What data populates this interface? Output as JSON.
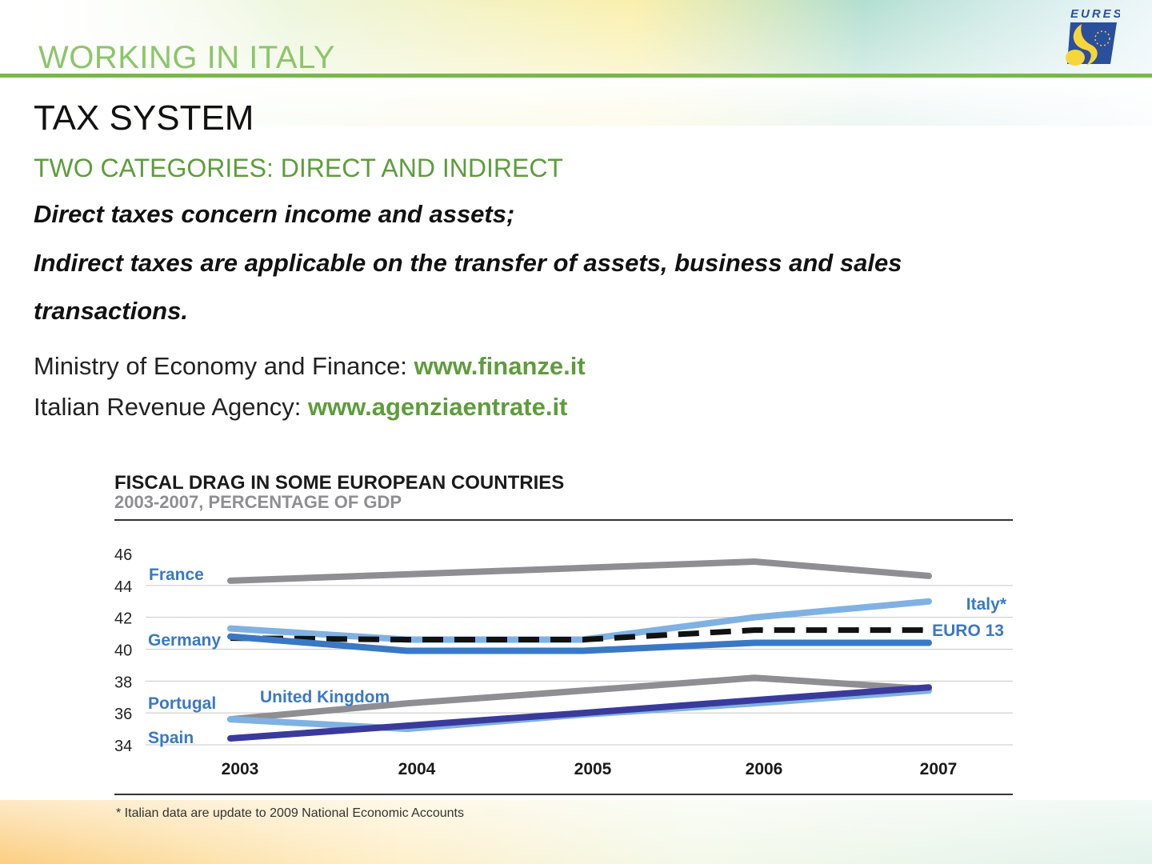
{
  "header": {
    "title": "WORKING IN ITALY",
    "logo_text": "EURES",
    "logo_icon": "eures-logo-icon"
  },
  "content": {
    "title": "TAX SYSTEM",
    "subtitle": "TWO CATEGORIES: DIRECT AND INDIRECT",
    "paragraph_1": "Direct taxes concern income and assets;",
    "paragraph_2_line_1": "Indirect taxes are applicable on the transfer of assets, business and sales",
    "paragraph_2_line_2": "transactions.",
    "link_1_label": "Ministry of Economy and Finance: ",
    "link_1_url": "www.finanze.it",
    "link_2_label": "Italian Revenue Agency: ",
    "link_2_url": "www.agenziaentrate.it"
  },
  "colors": {
    "accent_green": "#79b84d",
    "link_green": "#5e9c3c",
    "label_blue": "#3a78c4"
  },
  "chart_data": {
    "type": "line",
    "title": "FISCAL DRAG IN SOME EUROPEAN COUNTRIES",
    "subtitle": "2003-2007, PERCENTAGE OF GDP",
    "footnote": "* Italian data are update to 2009 National Economic Accounts",
    "x": [
      "2003",
      "2004",
      "2005",
      "2006",
      "2007"
    ],
    "y_ticks": [
      "46",
      "44",
      "42",
      "40",
      "38",
      "36",
      "34"
    ],
    "ylim": [
      34,
      46
    ],
    "grid": true,
    "series": [
      {
        "name": "France",
        "values": [
          44.3,
          44.7,
          45.1,
          45.5,
          44.6
        ],
        "color": "#8e8e93",
        "dashed": false
      },
      {
        "name": "Italy*",
        "values": [
          41.3,
          40.6,
          40.6,
          42.0,
          43.0
        ],
        "color": "#7fb2e2",
        "dashed": false
      },
      {
        "name": "EURO 13",
        "values": [
          40.7,
          40.6,
          40.6,
          41.2,
          41.2
        ],
        "color": "#111111",
        "dashed": true
      },
      {
        "name": "Germany",
        "values": [
          40.8,
          39.9,
          39.9,
          40.4,
          40.4
        ],
        "color": "#3a78c4",
        "dashed": false
      },
      {
        "name": "United Kingdom",
        "values": [
          35.6,
          36.6,
          37.4,
          38.2,
          37.5
        ],
        "color": "#8e8e93",
        "dashed": false
      },
      {
        "name": "Portugal",
        "values": [
          35.6,
          35.0,
          35.9,
          36.6,
          37.4
        ],
        "color": "#7fb2e2",
        "dashed": false
      },
      {
        "name": "Spain",
        "values": [
          34.4,
          35.2,
          36.0,
          36.8,
          37.6
        ],
        "color": "#3a3a9c",
        "dashed": false
      }
    ]
  }
}
